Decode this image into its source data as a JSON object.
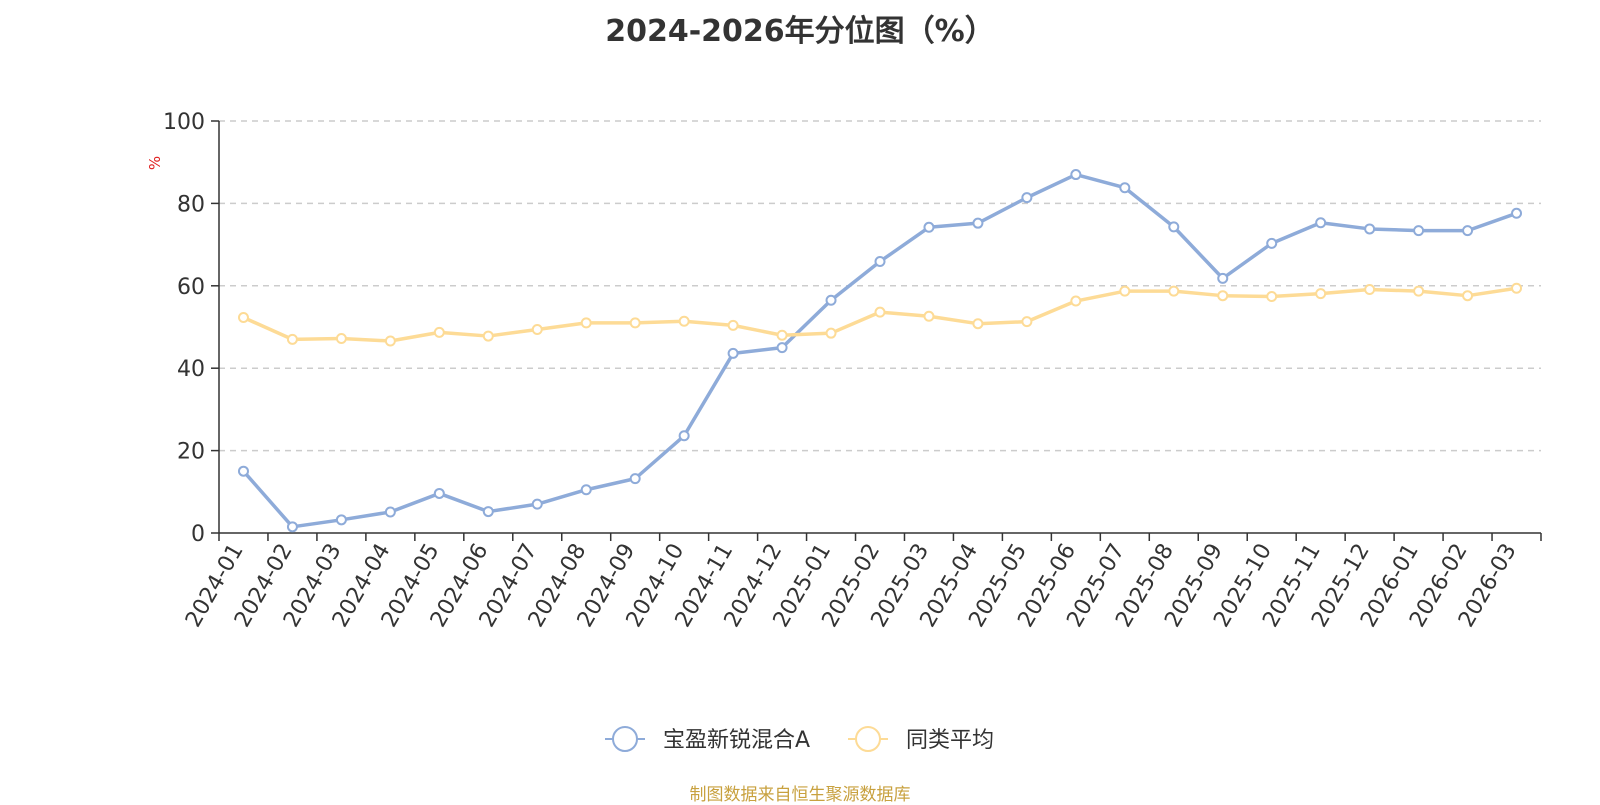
{
  "chart_data": {
    "type": "line",
    "title": "2024-2026年分位图（%）",
    "ylabel": "%",
    "xlabel": "",
    "ylim": [
      0,
      100
    ],
    "yticks": [
      0,
      20,
      40,
      60,
      80,
      100
    ],
    "grid": true,
    "legend_position": "bottom",
    "categories": [
      "2024-01",
      "2024-02",
      "2024-03",
      "2024-04",
      "2024-05",
      "2024-06",
      "2024-07",
      "2024-08",
      "2024-09",
      "2024-10",
      "2024-11",
      "2024-12",
      "2025-01",
      "2025-02",
      "2025-03",
      "2025-04",
      "2025-05",
      "2025-06",
      "2025-07",
      "2025-08",
      "2025-09",
      "2025-10",
      "2025-11",
      "2025-12",
      "2026-01",
      "2026-02",
      "2026-03"
    ],
    "series": [
      {
        "name": "宝盈新锐混合A",
        "color": "#8eabd9",
        "values": [
          15,
          1.5,
          3.2,
          5.1,
          9.6,
          5.2,
          7,
          10.5,
          13.2,
          23.6,
          43.6,
          45,
          56.5,
          65.9,
          74.2,
          75.2,
          81.4,
          87,
          83.8,
          74.3,
          61.8,
          70.3,
          75.3,
          73.8,
          73.4,
          73.4,
          77.6
        ]
      },
      {
        "name": "同类平均",
        "color": "#fddb96",
        "values": [
          52.3,
          47,
          47.2,
          46.6,
          48.7,
          47.8,
          49.4,
          51,
          51,
          51.4,
          50.4,
          48,
          48.5,
          53.6,
          52.6,
          50.8,
          51.3,
          56.3,
          58.7,
          58.7,
          57.6,
          57.4,
          58.1,
          59.1,
          58.7,
          57.6,
          59.4
        ]
      }
    ]
  },
  "footer": {
    "source": "制图数据来自恒生聚源数据库"
  }
}
